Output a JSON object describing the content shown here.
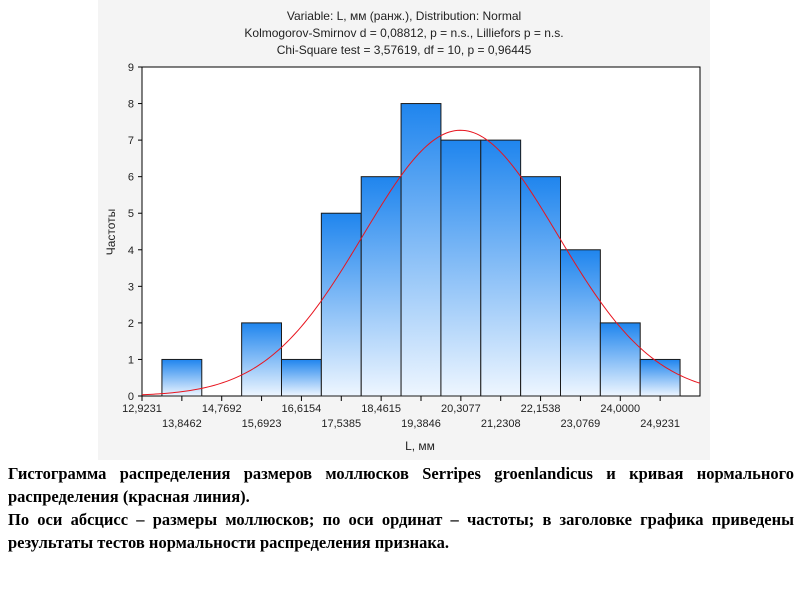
{
  "chart_data": {
    "type": "bar",
    "title_lines": [
      "Variable: L, мм (ранж.), Distribution: Normal",
      "Kolmogorov-Smirnov d = 0,08812, p = n.s., Lilliefors p = n.s.",
      "Chi-Square test = 3,57619, df = 10, p = 0,96445"
    ],
    "xlabel": "L, мм",
    "ylabel": "Частоты",
    "ylim": [
      0,
      9
    ],
    "yticks": [
      "0",
      "1",
      "2",
      "3",
      "4",
      "5",
      "6",
      "7",
      "8",
      "9"
    ],
    "xlim": [
      12.9231,
      25.8462
    ],
    "xticks_upper": [
      {
        "value": 12.9231,
        "label": "12,9231"
      },
      {
        "value": 14.7692,
        "label": "14,7692"
      },
      {
        "value": 16.6154,
        "label": "16,6154"
      },
      {
        "value": 18.4615,
        "label": "18,4615"
      },
      {
        "value": 20.3077,
        "label": "20,3077"
      },
      {
        "value": 22.1538,
        "label": "22,1538"
      },
      {
        "value": 24.0,
        "label": "24,0000"
      }
    ],
    "xticks_lower": [
      {
        "value": 13.8462,
        "label": "13,8462"
      },
      {
        "value": 15.6923,
        "label": "15,6923"
      },
      {
        "value": 17.5385,
        "label": "17,5385"
      },
      {
        "value": 19.3846,
        "label": "19,3846"
      },
      {
        "value": 21.2308,
        "label": "21,2308"
      },
      {
        "value": 23.0769,
        "label": "23,0769"
      },
      {
        "value": 24.9231,
        "label": "24,9231"
      }
    ],
    "bins": [
      {
        "from": 13.3846,
        "to": 14.3077,
        "count": 1
      },
      {
        "from": 14.3077,
        "to": 15.2308,
        "count": 0
      },
      {
        "from": 15.2308,
        "to": 16.1538,
        "count": 2
      },
      {
        "from": 16.1538,
        "to": 17.0769,
        "count": 1
      },
      {
        "from": 17.0769,
        "to": 18.0,
        "count": 5
      },
      {
        "from": 18.0,
        "to": 18.9231,
        "count": 6
      },
      {
        "from": 18.9231,
        "to": 19.8462,
        "count": 8
      },
      {
        "from": 19.8462,
        "to": 20.7692,
        "count": 7
      },
      {
        "from": 20.7692,
        "to": 21.6923,
        "count": 7
      },
      {
        "from": 21.6923,
        "to": 22.6154,
        "count": 6
      },
      {
        "from": 22.6154,
        "to": 23.5385,
        "count": 4
      },
      {
        "from": 23.5385,
        "to": 24.4615,
        "count": 2
      },
      {
        "from": 24.4615,
        "to": 25.3846,
        "count": 1
      }
    ],
    "normal_curve": {
      "mean": 20.3,
      "sd": 2.25,
      "peak": 7.27,
      "color": "#e8151f"
    },
    "bar_color_top": "#1f85ee",
    "bar_color_bottom": "#eef6ff",
    "bar_edge": "#1a1a1a",
    "grid": false
  },
  "caption": {
    "line1": "Гистограмма распределения размеров моллюсков Serripes groenlandicus  и кривая нормального распределения (красная линия).",
    "line2": "По оси абсцисс – размеры моллюсков; по оси ординат – частоты; в заголовке графика приведены результаты тестов нормальности распределения признака."
  }
}
